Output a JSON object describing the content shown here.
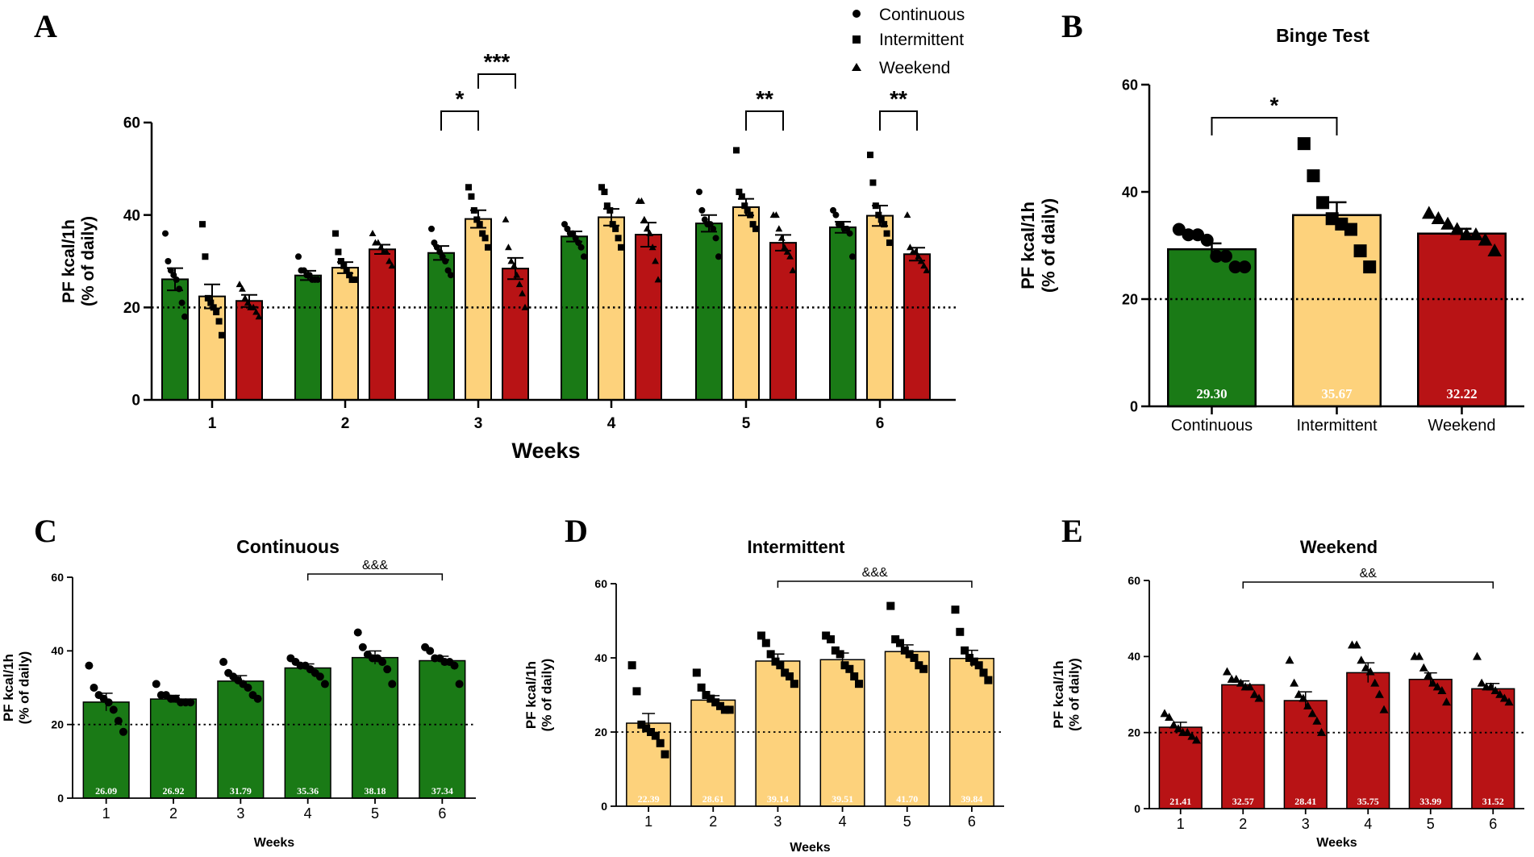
{
  "colors": {
    "continuous": "#1a7a16",
    "intermittent": "#fdd27c",
    "weekend": "#b81315",
    "ink": "#000000"
  },
  "legend": [
    {
      "label": "Continuous",
      "marker": "circle"
    },
    {
      "label": "Intermittent",
      "marker": "square"
    },
    {
      "label": "Weekend",
      "marker": "triangle"
    }
  ],
  "chart_data": [
    {
      "panel": "A",
      "type": "bar",
      "title": "",
      "xlabel": "Weeks",
      "ylabel": "PF kcal/1h\n(% of daily)",
      "ylim": [
        0,
        60
      ],
      "yticks": [
        0,
        20,
        40,
        60
      ],
      "reference_line": 20,
      "categories": [
        "1",
        "2",
        "3",
        "4",
        "5",
        "6"
      ],
      "series": [
        {
          "name": "Continuous",
          "marker": "circle",
          "color": "continuous",
          "values": [
            26.09,
            26.92,
            31.79,
            35.36,
            38.18,
            37.34
          ],
          "sem": [
            2.4,
            1.0,
            1.5,
            1.1,
            1.8,
            1.2
          ]
        },
        {
          "name": "Intermittent",
          "marker": "square",
          "color": "intermittent",
          "values": [
            22.39,
            28.61,
            39.14,
            39.51,
            41.7,
            39.84
          ],
          "sem": [
            2.6,
            1.2,
            1.9,
            1.8,
            1.8,
            2.2
          ]
        },
        {
          "name": "Weekend",
          "marker": "triangle",
          "color": "weekend",
          "values": [
            21.41,
            32.57,
            28.41,
            35.75,
            33.99,
            31.52
          ],
          "sem": [
            1.3,
            1.0,
            2.3,
            2.6,
            1.7,
            1.4
          ]
        }
      ],
      "points": [
        [
          [
            36,
            30,
            28,
            27,
            26,
            24,
            21,
            18
          ],
          [
            38,
            31,
            22,
            21,
            20,
            19,
            17,
            14
          ],
          [
            25,
            24,
            22,
            21,
            20,
            20,
            19,
            18
          ]
        ],
        [
          [
            31,
            28,
            28,
            27,
            27,
            26,
            26,
            26
          ],
          [
            36,
            32,
            30,
            29,
            28,
            27,
            26,
            26
          ],
          [
            36,
            34,
            34,
            33,
            32,
            32,
            30,
            29
          ]
        ],
        [
          [
            37,
            34,
            33,
            32,
            31,
            30,
            28,
            27
          ],
          [
            46,
            44,
            41,
            39,
            38,
            36,
            35,
            33
          ],
          [
            39,
            33,
            30,
            29,
            27,
            25,
            23,
            20
          ]
        ],
        [
          [
            38,
            37,
            36,
            36,
            35,
            34,
            33,
            31
          ],
          [
            46,
            45,
            42,
            41,
            38,
            37,
            35,
            33
          ],
          [
            43,
            43,
            39,
            37,
            36,
            33,
            30,
            26
          ]
        ],
        [
          [
            45,
            41,
            39,
            38,
            38,
            37,
            35,
            31
          ],
          [
            54,
            45,
            44,
            42,
            41,
            40,
            38,
            37
          ],
          [
            40,
            40,
            37,
            35,
            33,
            32,
            31,
            28
          ]
        ],
        [
          [
            41,
            40,
            38,
            38,
            37,
            37,
            36,
            31
          ],
          [
            53,
            47,
            42,
            40,
            39,
            38,
            36,
            34
          ],
          [
            40,
            33,
            32,
            32,
            31,
            30,
            29,
            28
          ]
        ]
      ],
      "significance": [
        {
          "week": "3",
          "from": "Continuous",
          "to": "Intermittent",
          "label": "*"
        },
        {
          "week": "3",
          "from": "Intermittent",
          "to": "Weekend",
          "label": "***"
        },
        {
          "week": "5",
          "from": "Intermittent",
          "to": "Weekend",
          "label": "**"
        },
        {
          "week": "6",
          "from": "Intermittent",
          "to": "Weekend",
          "label": "**"
        }
      ]
    },
    {
      "panel": "B",
      "type": "bar",
      "title": "Binge Test",
      "xlabel": "",
      "ylabel": "PF kcal/1h\n(% of daily)",
      "ylim": [
        0,
        60
      ],
      "yticks": [
        0,
        20,
        40,
        60
      ],
      "reference_line": 20,
      "categories": [
        "Continuous",
        "Intermittent",
        "Weekend"
      ],
      "values": [
        29.3,
        35.67,
        32.22
      ],
      "value_labels": [
        "29.30",
        "35.67",
        "32.22"
      ],
      "colors": [
        "continuous",
        "intermittent",
        "weekend"
      ],
      "markers": [
        "circle",
        "square",
        "triangle"
      ],
      "sem": [
        1.1,
        2.4,
        0.9
      ],
      "points": [
        [
          33,
          32,
          32,
          31,
          28,
          28,
          26,
          26
        ],
        [
          49,
          43,
          38,
          35,
          34,
          33,
          29,
          26
        ],
        [
          36,
          35,
          34,
          33,
          32,
          32,
          31,
          29
        ]
      ],
      "significance": [
        {
          "from": "Continuous",
          "to": "Intermittent",
          "label": "*"
        }
      ]
    },
    {
      "panel": "C",
      "type": "bar",
      "title": "Continuous",
      "xlabel": "Weeks",
      "ylabel": "PF kcal/1h\n(% of daily)",
      "ylim": [
        0,
        60
      ],
      "yticks": [
        0,
        20,
        40,
        60
      ],
      "reference_line": 20,
      "categories": [
        "1",
        "2",
        "3",
        "4",
        "5",
        "6"
      ],
      "values": [
        26.09,
        26.92,
        31.79,
        35.36,
        38.18,
        37.34
      ],
      "value_labels": [
        "26.09",
        "26.92",
        "31.79",
        "35.36",
        "38.18",
        "37.34"
      ],
      "color": "continuous",
      "marker": "circle",
      "sem": [
        2.4,
        1.0,
        1.5,
        1.1,
        1.8,
        1.2
      ],
      "points": [
        [
          36,
          30,
          28,
          27,
          26,
          24,
          21,
          18
        ],
        [
          31,
          28,
          28,
          27,
          27,
          26,
          26,
          26
        ],
        [
          37,
          34,
          33,
          32,
          31,
          30,
          28,
          27
        ],
        [
          38,
          37,
          36,
          36,
          35,
          34,
          33,
          31
        ],
        [
          45,
          41,
          39,
          38,
          38,
          37,
          35,
          31
        ],
        [
          41,
          40,
          38,
          38,
          37,
          37,
          36,
          31
        ]
      ],
      "bracket": {
        "from": "4",
        "to": "6",
        "label": "&&&"
      }
    },
    {
      "panel": "D",
      "type": "bar",
      "title": "Intermittent",
      "xlabel": "Weeks",
      "ylabel": "PF kcal/1h\n(% of daily)",
      "ylim": [
        0,
        60
      ],
      "yticks": [
        0,
        20,
        40,
        60
      ],
      "reference_line": 20,
      "categories": [
        "1",
        "2",
        "3",
        "4",
        "5",
        "6"
      ],
      "values": [
        22.39,
        28.61,
        39.14,
        39.51,
        41.7,
        39.84
      ],
      "value_labels": [
        "22.39",
        "28.61",
        "39.14",
        "39.51",
        "41.70",
        "39.84"
      ],
      "color": "intermittent",
      "marker": "square",
      "sem": [
        2.6,
        1.2,
        1.9,
        1.8,
        1.8,
        2.2
      ],
      "points": [
        [
          38,
          31,
          22,
          21,
          20,
          19,
          17,
          14
        ],
        [
          36,
          32,
          30,
          29,
          28,
          27,
          26,
          26
        ],
        [
          46,
          44,
          41,
          39,
          38,
          36,
          35,
          33
        ],
        [
          46,
          45,
          42,
          41,
          38,
          37,
          35,
          33
        ],
        [
          54,
          45,
          44,
          42,
          41,
          40,
          38,
          37
        ],
        [
          53,
          47,
          42,
          40,
          39,
          38,
          36,
          34
        ]
      ],
      "bracket": {
        "from": "3",
        "to": "6",
        "label": "&&&"
      }
    },
    {
      "panel": "E",
      "type": "bar",
      "title": "Weekend",
      "xlabel": "Weeks",
      "ylabel": "PF kcal/1h\n(% of daily)",
      "ylim": [
        0,
        60
      ],
      "yticks": [
        0,
        20,
        40,
        60
      ],
      "reference_line": 20,
      "categories": [
        "1",
        "2",
        "3",
        "4",
        "5",
        "6"
      ],
      "values": [
        21.41,
        32.57,
        28.41,
        35.75,
        33.99,
        31.52
      ],
      "value_labels": [
        "21.41",
        "32.57",
        "28.41",
        "35.75",
        "33.99",
        "31.52"
      ],
      "color": "weekend",
      "marker": "triangle",
      "sem": [
        1.3,
        1.0,
        2.3,
        2.6,
        1.7,
        1.4
      ],
      "points": [
        [
          25,
          24,
          22,
          21,
          20,
          20,
          19,
          18
        ],
        [
          36,
          34,
          34,
          33,
          32,
          32,
          30,
          29
        ],
        [
          39,
          33,
          30,
          29,
          27,
          25,
          23,
          20
        ],
        [
          43,
          43,
          39,
          37,
          36,
          33,
          30,
          26
        ],
        [
          40,
          40,
          37,
          35,
          33,
          32,
          31,
          28
        ],
        [
          40,
          33,
          32,
          32,
          31,
          30,
          29,
          28
        ]
      ],
      "bracket": {
        "from": "2",
        "to": "6",
        "label": "&&"
      }
    }
  ]
}
